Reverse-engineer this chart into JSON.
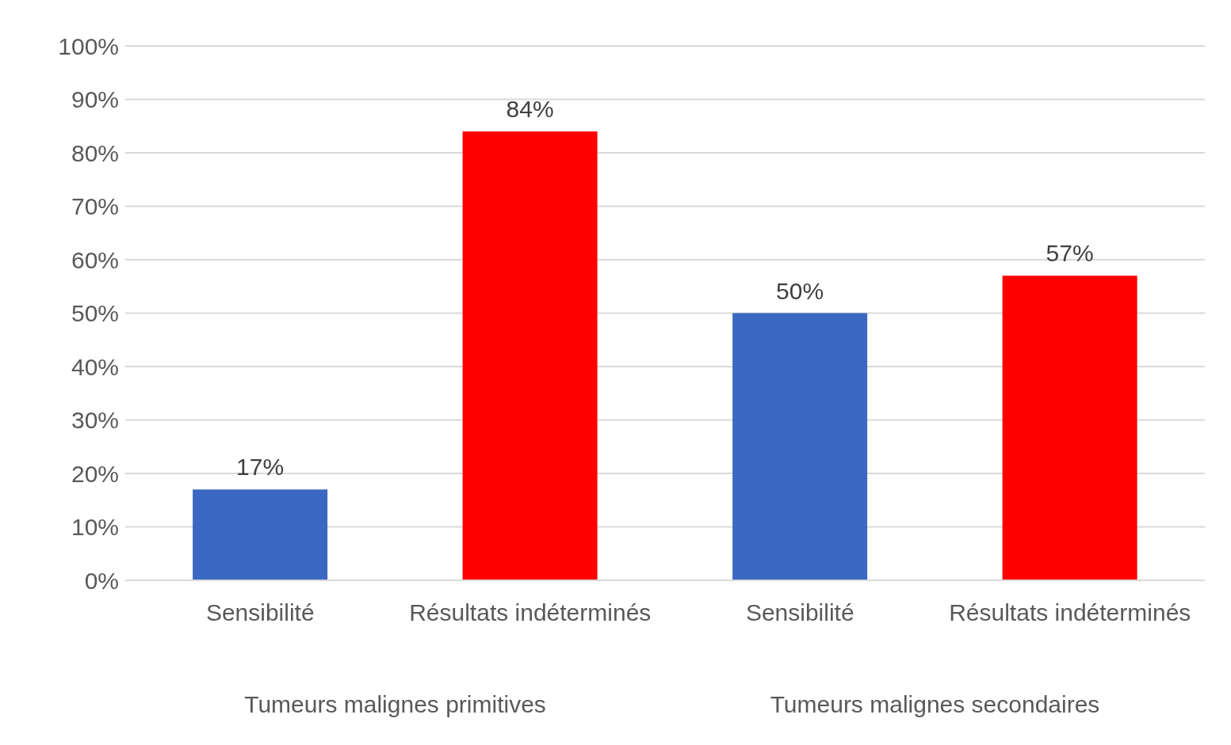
{
  "chart_data": {
    "type": "bar",
    "categories": [
      "Sensibilité",
      "Résultats indéterminés",
      "Sensibilité",
      "Résultats indéterminés"
    ],
    "values": [
      17,
      84,
      50,
      57
    ],
    "colors": [
      "#3a68c2",
      "#ff0000",
      "#3a68c2",
      "#ff0000"
    ],
    "ylim": [
      0,
      100
    ],
    "yticks": [
      {
        "value": 0,
        "label": "0%"
      },
      {
        "value": 10,
        "label": "10%"
      },
      {
        "value": 20,
        "label": "20%"
      },
      {
        "value": 30,
        "label": "30%"
      },
      {
        "value": 40,
        "label": "40%"
      },
      {
        "value": 50,
        "label": "50%"
      },
      {
        "value": 60,
        "label": "60%"
      },
      {
        "value": 70,
        "label": "70%"
      },
      {
        "value": 80,
        "label": "80%"
      },
      {
        "value": 90,
        "label": "90%"
      },
      {
        "value": 100,
        "label": "100%"
      }
    ],
    "value_labels": [
      "17%",
      "84%",
      "50%",
      "57%"
    ],
    "grid": "y",
    "annotations": [
      "Tumeurs malignes primitives",
      "Tumeurs malignes secondaires"
    ]
  }
}
